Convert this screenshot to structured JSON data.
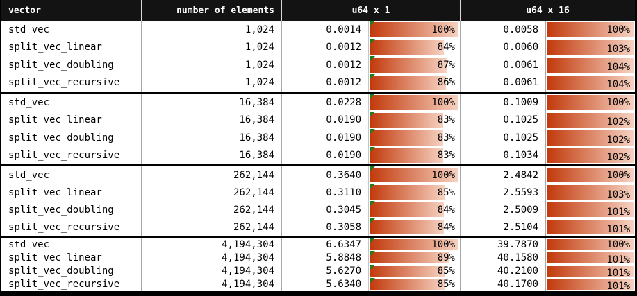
{
  "table": {
    "columns": [
      "vector",
      "number of elements",
      "u64 x 1",
      "u64 x 16"
    ],
    "groups": [
      {
        "elements": "1,024",
        "rows": [
          {
            "name": "std_vec",
            "u64x1": {
              "value": "0.0014",
              "pct": 100
            },
            "u64x16": {
              "value": "0.0058",
              "pct": 100
            }
          },
          {
            "name": "split_vec_linear",
            "u64x1": {
              "value": "0.0012",
              "pct": 84
            },
            "u64x16": {
              "value": "0.0060",
              "pct": 103
            }
          },
          {
            "name": "split_vec_doubling",
            "u64x1": {
              "value": "0.0012",
              "pct": 87
            },
            "u64x16": {
              "value": "0.0061",
              "pct": 104
            }
          },
          {
            "name": "split_vec_recursive",
            "u64x1": {
              "value": "0.0012",
              "pct": 86
            },
            "u64x16": {
              "value": "0.0061",
              "pct": 104
            }
          }
        ]
      },
      {
        "elements": "16,384",
        "rows": [
          {
            "name": "std_vec",
            "u64x1": {
              "value": "0.0228",
              "pct": 100
            },
            "u64x16": {
              "value": "0.1009",
              "pct": 100
            }
          },
          {
            "name": "split_vec_linear",
            "u64x1": {
              "value": "0.0190",
              "pct": 83
            },
            "u64x16": {
              "value": "0.1025",
              "pct": 102
            }
          },
          {
            "name": "split_vec_doubling",
            "u64x1": {
              "value": "0.0190",
              "pct": 83
            },
            "u64x16": {
              "value": "0.1025",
              "pct": 102
            }
          },
          {
            "name": "split_vec_recursive",
            "u64x1": {
              "value": "0.0190",
              "pct": 83
            },
            "u64x16": {
              "value": "0.1034",
              "pct": 102
            }
          }
        ]
      },
      {
        "elements": "262,144",
        "rows": [
          {
            "name": "std_vec",
            "u64x1": {
              "value": "0.3640",
              "pct": 100
            },
            "u64x16": {
              "value": "2.4842",
              "pct": 100
            }
          },
          {
            "name": "split_vec_linear",
            "u64x1": {
              "value": "0.3110",
              "pct": 85
            },
            "u64x16": {
              "value": "2.5593",
              "pct": 103
            }
          },
          {
            "name": "split_vec_doubling",
            "u64x1": {
              "value": "0.3045",
              "pct": 84
            },
            "u64x16": {
              "value": "2.5009",
              "pct": 101
            }
          },
          {
            "name": "split_vec_recursive",
            "u64x1": {
              "value": "0.3058",
              "pct": 84
            },
            "u64x16": {
              "value": "2.5104",
              "pct": 101
            }
          }
        ]
      },
      {
        "elements": "4,194,304",
        "rows": [
          {
            "name": "std_vec",
            "u64x1": {
              "value": "6.6347",
              "pct": 100
            },
            "u64x16": {
              "value": "39.7870",
              "pct": 100
            }
          },
          {
            "name": "split_vec_linear",
            "u64x1": {
              "value": "5.8848",
              "pct": 89
            },
            "u64x16": {
              "value": "40.1580",
              "pct": 101
            }
          },
          {
            "name": "split_vec_doubling",
            "u64x1": {
              "value": "5.6270",
              "pct": 85
            },
            "u64x16": {
              "value": "40.2100",
              "pct": 101
            }
          },
          {
            "name": "split_vec_recursive",
            "u64x1": {
              "value": "5.6340",
              "pct": 85
            },
            "u64x16": {
              "value": "40.1700",
              "pct": 101
            }
          }
        ]
      }
    ]
  },
  "colors": {
    "header_bg": "#131313",
    "bar_start": "#c23a0c",
    "bar_end": "#f6d2c2",
    "marker_green": "#1e7d1e",
    "grid_line": "#a8a8a8",
    "bar_line": "#c6c6c6",
    "frame": "#000000"
  }
}
